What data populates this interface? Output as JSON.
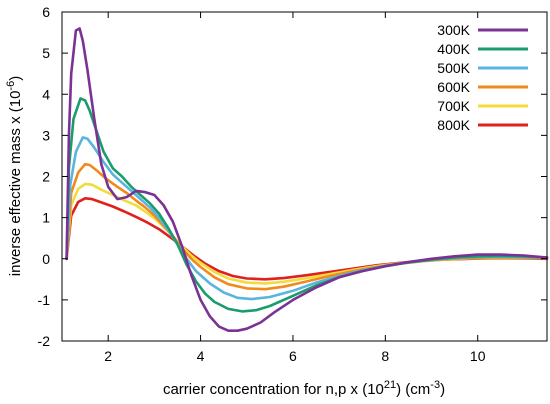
{
  "chart_data": {
    "type": "line",
    "xlabel_prefix": "carrier concentration for n,p x (10",
    "xlabel_exp1": "21",
    "xlabel_mid": ") (cm",
    "xlabel_exp2": "-3",
    "xlabel_suffix": ")",
    "ylabel_prefix": "inverse effective mass x (10",
    "ylabel_exp": "-6",
    "ylabel_suffix": ")",
    "xlim": [
      1,
      11.5
    ],
    "ylim": [
      -2,
      6
    ],
    "x_ticks": [
      2,
      4,
      6,
      8,
      10
    ],
    "y_ticks": [
      -2,
      -1,
      0,
      1,
      2,
      3,
      4,
      5,
      6
    ],
    "grid": false,
    "legend_position": "top-right",
    "series": [
      {
        "name": "300K",
        "color": "#7b3294",
        "points": [
          [
            1.1,
            0
          ],
          [
            1.15,
            3.0
          ],
          [
            1.2,
            4.5
          ],
          [
            1.3,
            5.55
          ],
          [
            1.38,
            5.6
          ],
          [
            1.45,
            5.3
          ],
          [
            1.55,
            4.6
          ],
          [
            1.7,
            3.4
          ],
          [
            1.85,
            2.3
          ],
          [
            2.0,
            1.75
          ],
          [
            2.2,
            1.45
          ],
          [
            2.4,
            1.5
          ],
          [
            2.6,
            1.65
          ],
          [
            2.8,
            1.62
          ],
          [
            3.0,
            1.55
          ],
          [
            3.2,
            1.3
          ],
          [
            3.4,
            0.9
          ],
          [
            3.6,
            0.3
          ],
          [
            3.8,
            -0.4
          ],
          [
            4.0,
            -1.0
          ],
          [
            4.2,
            -1.4
          ],
          [
            4.4,
            -1.65
          ],
          [
            4.6,
            -1.75
          ],
          [
            4.8,
            -1.75
          ],
          [
            5.0,
            -1.7
          ],
          [
            5.3,
            -1.55
          ],
          [
            5.6,
            -1.3
          ],
          [
            6.0,
            -1.0
          ],
          [
            6.5,
            -0.7
          ],
          [
            7.0,
            -0.45
          ],
          [
            7.5,
            -0.3
          ],
          [
            8.0,
            -0.18
          ],
          [
            8.5,
            -0.08
          ],
          [
            9.0,
            0.0
          ],
          [
            9.5,
            0.06
          ],
          [
            10.0,
            0.1
          ],
          [
            10.5,
            0.1
          ],
          [
            11.0,
            0.08
          ],
          [
            11.5,
            0.03
          ]
        ]
      },
      {
        "name": "400K",
        "color": "#1a9c6c",
        "points": [
          [
            1.1,
            0
          ],
          [
            1.15,
            2.2
          ],
          [
            1.25,
            3.4
          ],
          [
            1.4,
            3.9
          ],
          [
            1.5,
            3.85
          ],
          [
            1.6,
            3.6
          ],
          [
            1.75,
            3.1
          ],
          [
            1.9,
            2.6
          ],
          [
            2.1,
            2.2
          ],
          [
            2.3,
            2.0
          ],
          [
            2.5,
            1.75
          ],
          [
            2.7,
            1.55
          ],
          [
            2.9,
            1.35
          ],
          [
            3.1,
            1.1
          ],
          [
            3.3,
            0.75
          ],
          [
            3.5,
            0.35
          ],
          [
            3.7,
            -0.15
          ],
          [
            3.9,
            -0.55
          ],
          [
            4.1,
            -0.85
          ],
          [
            4.3,
            -1.05
          ],
          [
            4.6,
            -1.22
          ],
          [
            4.9,
            -1.28
          ],
          [
            5.2,
            -1.25
          ],
          [
            5.5,
            -1.15
          ],
          [
            6.0,
            -0.9
          ],
          [
            6.5,
            -0.65
          ],
          [
            7.0,
            -0.45
          ],
          [
            7.5,
            -0.3
          ],
          [
            8.0,
            -0.18
          ],
          [
            8.5,
            -0.09
          ],
          [
            9.0,
            -0.02
          ],
          [
            9.5,
            0.03
          ],
          [
            10.0,
            0.06
          ],
          [
            10.5,
            0.07
          ],
          [
            11.0,
            0.06
          ],
          [
            11.5,
            0.03
          ]
        ]
      },
      {
        "name": "500K",
        "color": "#5ab4e0",
        "points": [
          [
            1.1,
            0
          ],
          [
            1.18,
            1.8
          ],
          [
            1.3,
            2.6
          ],
          [
            1.45,
            2.95
          ],
          [
            1.55,
            2.92
          ],
          [
            1.7,
            2.7
          ],
          [
            1.9,
            2.35
          ],
          [
            2.1,
            2.05
          ],
          [
            2.3,
            1.85
          ],
          [
            2.5,
            1.65
          ],
          [
            2.7,
            1.45
          ],
          [
            2.9,
            1.25
          ],
          [
            3.1,
            1.0
          ],
          [
            3.3,
            0.7
          ],
          [
            3.5,
            0.35
          ],
          [
            3.7,
            0.0
          ],
          [
            3.9,
            -0.3
          ],
          [
            4.2,
            -0.6
          ],
          [
            4.5,
            -0.82
          ],
          [
            4.8,
            -0.95
          ],
          [
            5.1,
            -0.98
          ],
          [
            5.5,
            -0.93
          ],
          [
            6.0,
            -0.78
          ],
          [
            6.5,
            -0.58
          ],
          [
            7.0,
            -0.42
          ],
          [
            7.5,
            -0.28
          ],
          [
            8.0,
            -0.17
          ],
          [
            8.5,
            -0.09
          ],
          [
            9.0,
            -0.03
          ],
          [
            9.5,
            0.02
          ],
          [
            10.0,
            0.04
          ],
          [
            10.5,
            0.05
          ],
          [
            11.0,
            0.04
          ],
          [
            11.5,
            0.02
          ]
        ]
      },
      {
        "name": "600K",
        "color": "#f08a1c",
        "points": [
          [
            1.1,
            0
          ],
          [
            1.2,
            1.6
          ],
          [
            1.35,
            2.1
          ],
          [
            1.5,
            2.3
          ],
          [
            1.6,
            2.28
          ],
          [
            1.75,
            2.15
          ],
          [
            1.95,
            1.95
          ],
          [
            2.2,
            1.75
          ],
          [
            2.4,
            1.6
          ],
          [
            2.6,
            1.42
          ],
          [
            2.8,
            1.25
          ],
          [
            3.0,
            1.05
          ],
          [
            3.2,
            0.8
          ],
          [
            3.4,
            0.55
          ],
          [
            3.6,
            0.25
          ],
          [
            3.8,
            0.0
          ],
          [
            4.0,
            -0.2
          ],
          [
            4.3,
            -0.45
          ],
          [
            4.6,
            -0.62
          ],
          [
            5.0,
            -0.72
          ],
          [
            5.4,
            -0.74
          ],
          [
            5.8,
            -0.68
          ],
          [
            6.3,
            -0.55
          ],
          [
            6.8,
            -0.42
          ],
          [
            7.3,
            -0.3
          ],
          [
            7.8,
            -0.2
          ],
          [
            8.3,
            -0.12
          ],
          [
            8.8,
            -0.06
          ],
          [
            9.3,
            -0.01
          ],
          [
            9.8,
            0.02
          ],
          [
            10.3,
            0.03
          ],
          [
            10.8,
            0.03
          ],
          [
            11.5,
            0.01
          ]
        ]
      },
      {
        "name": "700K",
        "color": "#f2dc3c",
        "points": [
          [
            1.1,
            0
          ],
          [
            1.2,
            1.3
          ],
          [
            1.35,
            1.7
          ],
          [
            1.5,
            1.82
          ],
          [
            1.65,
            1.8
          ],
          [
            1.85,
            1.68
          ],
          [
            2.1,
            1.55
          ],
          [
            2.35,
            1.42
          ],
          [
            2.6,
            1.3
          ],
          [
            2.8,
            1.15
          ],
          [
            3.0,
            0.98
          ],
          [
            3.2,
            0.78
          ],
          [
            3.4,
            0.55
          ],
          [
            3.6,
            0.3
          ],
          [
            3.8,
            0.08
          ],
          [
            4.0,
            -0.1
          ],
          [
            4.3,
            -0.32
          ],
          [
            4.6,
            -0.48
          ],
          [
            5.0,
            -0.58
          ],
          [
            5.4,
            -0.6
          ],
          [
            5.8,
            -0.56
          ],
          [
            6.3,
            -0.47
          ],
          [
            6.8,
            -0.37
          ],
          [
            7.3,
            -0.27
          ],
          [
            7.8,
            -0.18
          ],
          [
            8.3,
            -0.11
          ],
          [
            8.8,
            -0.06
          ],
          [
            9.3,
            -0.02
          ],
          [
            9.8,
            0.01
          ],
          [
            10.3,
            0.02
          ],
          [
            10.8,
            0.02
          ],
          [
            11.5,
            0.01
          ]
        ]
      },
      {
        "name": "800K",
        "color": "#e0201c",
        "points": [
          [
            1.1,
            0
          ],
          [
            1.2,
            1.05
          ],
          [
            1.35,
            1.38
          ],
          [
            1.5,
            1.47
          ],
          [
            1.65,
            1.45
          ],
          [
            1.85,
            1.37
          ],
          [
            2.1,
            1.27
          ],
          [
            2.35,
            1.15
          ],
          [
            2.6,
            1.02
          ],
          [
            2.85,
            0.88
          ],
          [
            3.1,
            0.72
          ],
          [
            3.35,
            0.52
          ],
          [
            3.6,
            0.3
          ],
          [
            3.85,
            0.08
          ],
          [
            4.1,
            -0.12
          ],
          [
            4.4,
            -0.3
          ],
          [
            4.7,
            -0.42
          ],
          [
            5.0,
            -0.48
          ],
          [
            5.4,
            -0.5
          ],
          [
            5.8,
            -0.47
          ],
          [
            6.3,
            -0.4
          ],
          [
            6.8,
            -0.32
          ],
          [
            7.3,
            -0.24
          ],
          [
            7.8,
            -0.16
          ],
          [
            8.3,
            -0.1
          ],
          [
            8.8,
            -0.05
          ],
          [
            9.3,
            -0.02
          ],
          [
            9.8,
            0.0
          ],
          [
            10.3,
            0.01
          ],
          [
            10.8,
            0.01
          ],
          [
            11.5,
            0.0
          ]
        ]
      }
    ]
  }
}
